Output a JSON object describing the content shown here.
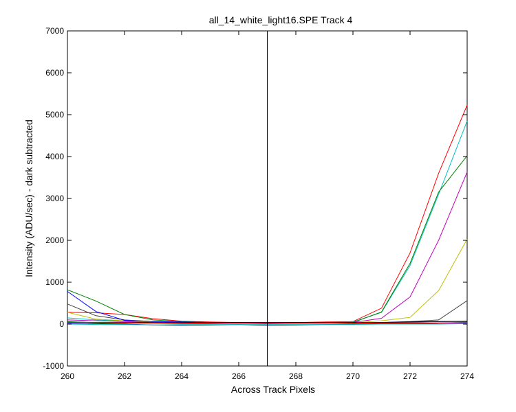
{
  "chart_data": {
    "type": "line",
    "title": "all_14_white_light16.SPE   Track 4",
    "xlabel": "Across Track Pixels",
    "ylabel": "Intensity (ADU/sec) - dark subtracted",
    "xlim": [
      260,
      274
    ],
    "ylim": [
      -1000,
      7000
    ],
    "x_ticks": [
      "260",
      "262",
      "264",
      "266",
      "268",
      "270",
      "272",
      "274"
    ],
    "y_ticks": [
      "-1000",
      "0",
      "1000",
      "2000",
      "3000",
      "4000",
      "5000",
      "6000",
      "7000"
    ],
    "grid": false,
    "legend": "none",
    "x": [
      260,
      261,
      262,
      263,
      264,
      265,
      266,
      267,
      268,
      269,
      270,
      271,
      272,
      273,
      274
    ],
    "vertical_marker_x": 267,
    "series": [
      {
        "color": "#ff0000",
        "values": [
          280,
          270,
          230,
          130,
          70,
          50,
          40,
          30,
          40,
          50,
          60,
          380,
          1700,
          3600,
          5230
        ]
      },
      {
        "color": "#00bfbf",
        "values": [
          150,
          100,
          70,
          40,
          30,
          30,
          30,
          30,
          30,
          40,
          50,
          280,
          1400,
          3100,
          4850
        ]
      },
      {
        "color": "#008000",
        "values": [
          820,
          550,
          230,
          100,
          60,
          40,
          30,
          20,
          20,
          30,
          40,
          290,
          1450,
          3150,
          4020
        ]
      },
      {
        "color": "#bf00bf",
        "values": [
          100,
          80,
          60,
          40,
          30,
          30,
          30,
          30,
          30,
          30,
          40,
          140,
          650,
          2000,
          3630
        ]
      },
      {
        "color": "#bfbf00",
        "values": [
          280,
          120,
          80,
          50,
          40,
          30,
          30,
          20,
          20,
          30,
          30,
          80,
          160,
          800,
          2030
        ]
      },
      {
        "color": "#404040",
        "values": [
          480,
          200,
          100,
          60,
          40,
          30,
          30,
          30,
          30,
          30,
          30,
          40,
          60,
          100,
          560
        ]
      },
      {
        "color": "#0000ff",
        "values": [
          780,
          300,
          90,
          60,
          50,
          40,
          30,
          30,
          30,
          30,
          30,
          40,
          50,
          60,
          70
        ]
      },
      {
        "color": "#000000",
        "values": [
          50,
          40,
          40,
          40,
          40,
          40,
          40,
          40,
          40,
          40,
          40,
          40,
          50,
          60,
          60
        ]
      },
      {
        "color": "#0000ff",
        "values": [
          20,
          10,
          0,
          -20,
          -30,
          -20,
          -10,
          -30,
          -20,
          -10,
          0,
          10,
          10,
          20,
          30
        ]
      },
      {
        "color": "#00bfbf",
        "values": [
          0,
          -10,
          -10,
          -20,
          -10,
          -10,
          -10,
          -10,
          -10,
          -10,
          -10,
          0,
          0,
          0,
          10
        ]
      },
      {
        "color": "#008000",
        "values": [
          60,
          30,
          20,
          20,
          10,
          10,
          20,
          10,
          20,
          20,
          30,
          30,
          30,
          30,
          40
        ]
      },
      {
        "color": "#ff0000",
        "values": [
          40,
          40,
          30,
          30,
          30,
          20,
          20,
          20,
          20,
          20,
          20,
          30,
          30,
          30,
          40
        ]
      }
    ]
  }
}
